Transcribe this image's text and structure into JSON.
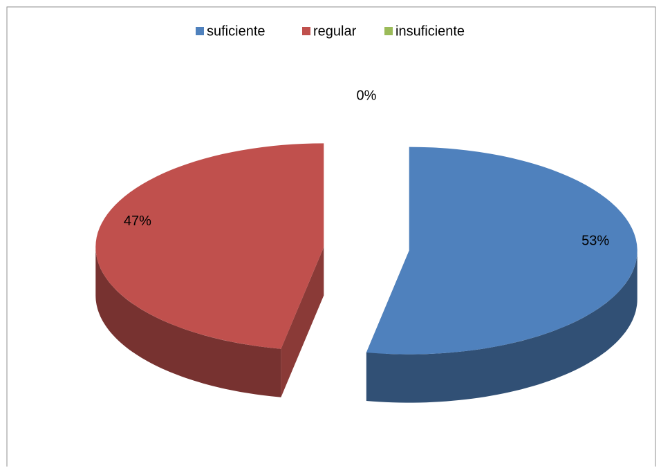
{
  "chart_data": {
    "type": "pie",
    "categories": [
      "suficiente",
      "regular",
      "insuficiente"
    ],
    "values": [
      53,
      47,
      0
    ],
    "value_labels": [
      "53%",
      "47%",
      "0%"
    ],
    "colors": [
      "#4f81bd",
      "#c0504d",
      "#9bbb59"
    ],
    "legend": "top"
  }
}
